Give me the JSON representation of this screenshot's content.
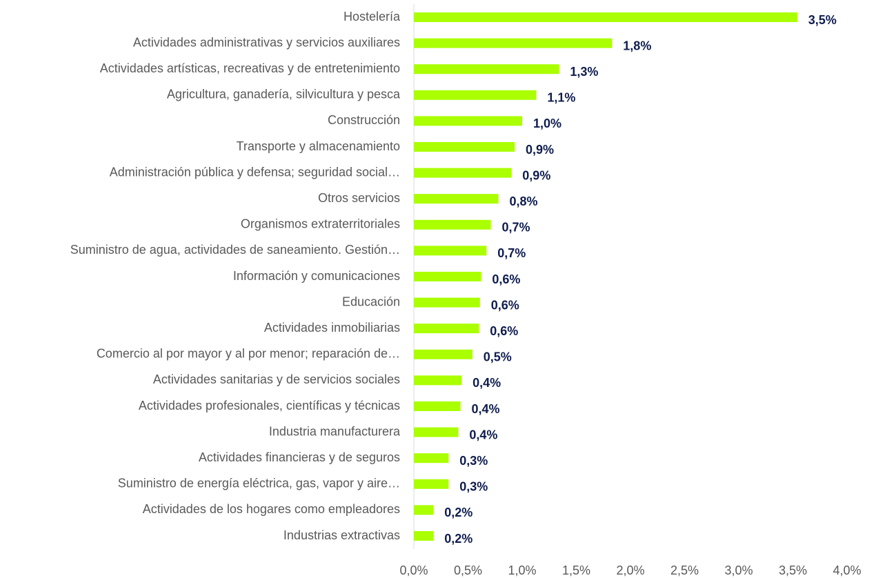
{
  "chart_data": {
    "type": "barh",
    "categories": [
      "Hostelería",
      "Actividades administrativas y servicios auxiliares",
      "Actividades artísticas, recreativas y de entretenimiento",
      "Agricultura, ganadería, silvicultura y pesca",
      "Construcción",
      "Transporte y almacenamiento",
      "Administración pública y defensa; seguridad social…",
      "Otros servicios",
      "Organismos extraterritoriales",
      "Suministro de agua, actividades de saneamiento. Gestión…",
      "Información y comunicaciones",
      "Educación",
      "Actividades inmobiliarias",
      "Comercio al por mayor y al por menor; reparación de…",
      "Actividades sanitarias y de servicios sociales",
      "Actividades profesionales, científicas y técnicas",
      "Industria manufacturera",
      "Actividades financieras y de seguros",
      "Suministro de energía eléctrica, gas, vapor y aire…",
      "Actividades de los hogares como empleadores",
      "Industrias extractivas"
    ],
    "values": [
      3.54,
      1.83,
      1.34,
      1.13,
      1.0,
      0.93,
      0.9,
      0.78,
      0.71,
      0.67,
      0.62,
      0.61,
      0.6,
      0.54,
      0.44,
      0.43,
      0.41,
      0.32,
      0.32,
      0.18,
      0.18
    ],
    "value_labels": [
      "3,5%",
      "1,8%",
      "1,3%",
      "1,1%",
      "1,0%",
      "0,9%",
      "0,9%",
      "0,8%",
      "0,7%",
      "0,7%",
      "0,6%",
      "0,6%",
      "0,6%",
      "0,5%",
      "0,4%",
      "0,4%",
      "0,4%",
      "0,3%",
      "0,3%",
      "0,2%",
      "0,2%"
    ],
    "color": "#aaff00",
    "xlim": [
      0,
      4
    ],
    "xticks": [
      {
        "value": 0,
        "label": "0,0%"
      },
      {
        "value": 0.5,
        "label": "0,5%"
      },
      {
        "value": 1,
        "label": "1,0%"
      },
      {
        "value": 1.5,
        "label": "1,5%"
      },
      {
        "value": 2,
        "label": "2,0%"
      },
      {
        "value": 2.5,
        "label": "2,5%"
      },
      {
        "value": 3,
        "label": "3,0%"
      },
      {
        "value": 3.5,
        "label": "3,5%"
      },
      {
        "value": 4,
        "label": "4,0%"
      }
    ]
  }
}
